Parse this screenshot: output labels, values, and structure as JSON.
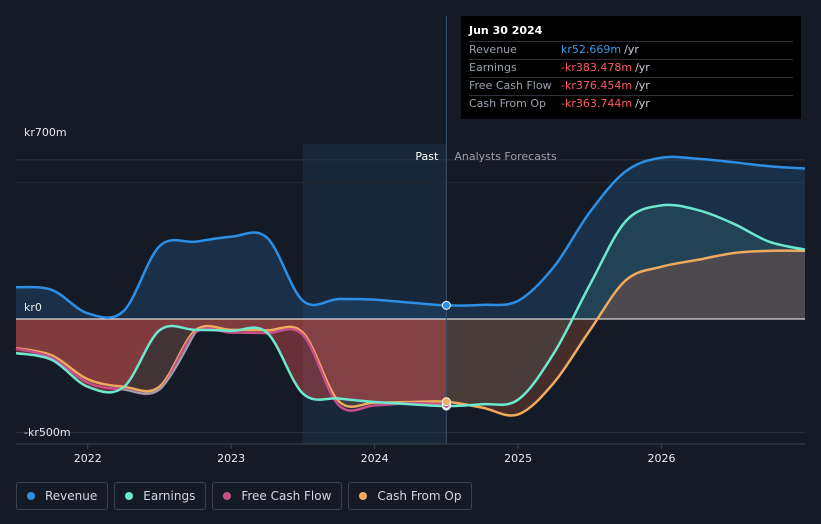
{
  "tooltip": {
    "date": "Jun 30 2024",
    "rows": [
      {
        "label": "Revenue",
        "value": "kr52.669m",
        "unit": "/yr",
        "color": "#3b9ae8"
      },
      {
        "label": "Earnings",
        "value": "-kr383.478m",
        "unit": "/yr",
        "color": "#ff5a5f"
      },
      {
        "label": "Free Cash Flow",
        "value": "-kr376.454m",
        "unit": "/yr",
        "color": "#ff5a5f"
      },
      {
        "label": "Cash From Op",
        "value": "-kr363.744m",
        "unit": "/yr",
        "color": "#ff5a5f"
      }
    ]
  },
  "labels": {
    "past": "Past",
    "forecast": "Analysts Forecasts"
  },
  "legend": [
    {
      "label": "Revenue",
      "color": "#2c8fe5"
    },
    {
      "label": "Earnings",
      "color": "#6de8cf"
    },
    {
      "label": "Free Cash Flow",
      "color": "#c8508a"
    },
    {
      "label": "Cash From Op",
      "color": "#efaa5e"
    }
  ],
  "chart_data": {
    "type": "line",
    "y_tick_labels": [
      "kr700m",
      "kr0",
      "-kr500m"
    ],
    "y_ticks": [
      700,
      0,
      -500
    ],
    "ylim": [
      -550,
      770
    ],
    "xlim": [
      2021.5,
      2027.0
    ],
    "x_ticks": [
      2022,
      2023,
      2024,
      2025,
      2026
    ],
    "x_tick_labels": [
      "2022",
      "2023",
      "2024",
      "2025",
      "2026"
    ],
    "past_start": 2023.5,
    "divider_x": 2024.5,
    "series": [
      {
        "name": "Revenue",
        "color": "#2c8fe5",
        "points": [
          [
            2021.5,
            140
          ],
          [
            2021.75,
            128
          ],
          [
            2022.0,
            25
          ],
          [
            2022.25,
            35
          ],
          [
            2022.5,
            320
          ],
          [
            2022.75,
            340
          ],
          [
            2023.0,
            362
          ],
          [
            2023.25,
            358
          ],
          [
            2023.5,
            80
          ],
          [
            2023.75,
            88
          ],
          [
            2024.0,
            85
          ],
          [
            2024.25,
            72
          ],
          [
            2024.5,
            60
          ],
          [
            2024.75,
            62
          ],
          [
            2025.0,
            80
          ],
          [
            2025.25,
            230
          ],
          [
            2025.5,
            470
          ],
          [
            2025.75,
            650
          ],
          [
            2026.0,
            710
          ],
          [
            2026.25,
            705
          ],
          [
            2026.5,
            690
          ],
          [
            2026.75,
            672
          ],
          [
            2027.0,
            662
          ]
        ]
      },
      {
        "name": "Earnings",
        "color": "#6de8cf",
        "points": [
          [
            2021.5,
            -150
          ],
          [
            2021.75,
            -180
          ],
          [
            2022.0,
            -298
          ],
          [
            2022.25,
            -300
          ],
          [
            2022.5,
            -50
          ],
          [
            2022.75,
            -48
          ],
          [
            2023.0,
            -52
          ],
          [
            2023.25,
            -60
          ],
          [
            2023.5,
            -328
          ],
          [
            2023.75,
            -350
          ],
          [
            2024.0,
            -365
          ],
          [
            2024.25,
            -375
          ],
          [
            2024.5,
            -383
          ],
          [
            2024.75,
            -375
          ],
          [
            2025.0,
            -355
          ],
          [
            2025.25,
            -150
          ],
          [
            2025.5,
            150
          ],
          [
            2025.75,
            430
          ],
          [
            2026.0,
            500
          ],
          [
            2026.25,
            480
          ],
          [
            2026.5,
            420
          ],
          [
            2026.75,
            340
          ],
          [
            2027.0,
            305
          ]
        ]
      },
      {
        "name": "Free Cash Flow",
        "color": "#c8508a",
        "points": [
          [
            2021.5,
            -130
          ],
          [
            2021.75,
            -170
          ],
          [
            2022.0,
            -280
          ],
          [
            2022.25,
            -310
          ],
          [
            2022.5,
            -310
          ],
          [
            2022.75,
            -60
          ],
          [
            2023.0,
            -60
          ],
          [
            2023.25,
            -62
          ],
          [
            2023.5,
            -70
          ],
          [
            2023.75,
            -380
          ],
          [
            2024.0,
            -380
          ],
          [
            2024.25,
            -370
          ],
          [
            2024.5,
            -376
          ]
        ]
      },
      {
        "name": "Cash From Op",
        "color": "#efaa5e",
        "points": [
          [
            2021.5,
            -128
          ],
          [
            2021.75,
            -160
          ],
          [
            2022.0,
            -265
          ],
          [
            2022.25,
            -298
          ],
          [
            2022.5,
            -298
          ],
          [
            2022.75,
            -50
          ],
          [
            2023.0,
            -48
          ],
          [
            2023.25,
            -50
          ],
          [
            2023.5,
            -60
          ],
          [
            2023.75,
            -362
          ],
          [
            2024.0,
            -368
          ],
          [
            2024.25,
            -365
          ],
          [
            2024.5,
            -364
          ],
          [
            2024.75,
            -390
          ],
          [
            2025.0,
            -420
          ],
          [
            2025.25,
            -280
          ],
          [
            2025.5,
            -50
          ],
          [
            2025.75,
            170
          ],
          [
            2026.0,
            230
          ],
          [
            2026.25,
            260
          ],
          [
            2026.5,
            290
          ],
          [
            2026.75,
            300
          ],
          [
            2027.0,
            300
          ]
        ]
      }
    ]
  }
}
